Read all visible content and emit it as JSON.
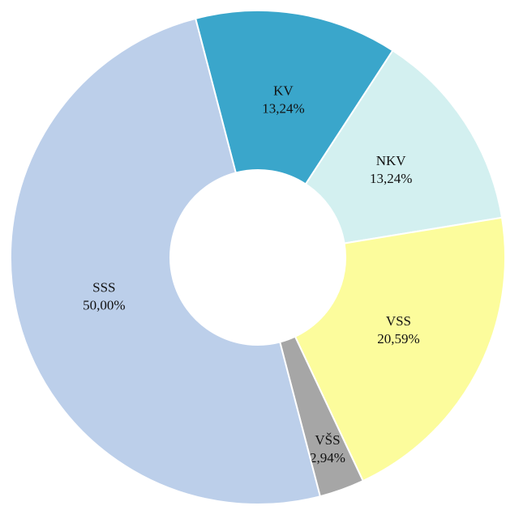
{
  "chart_data": {
    "type": "pie",
    "donut": true,
    "categories": [
      "KV",
      "NKV",
      "VSS",
      "VŠS",
      "SSS"
    ],
    "values": [
      13.24,
      13.24,
      20.59,
      2.94,
      50.0
    ],
    "value_labels": [
      "13,24%",
      "13,24%",
      "20,59%",
      "2,94%",
      "50,00%"
    ],
    "colors": [
      "#3aa6cb",
      "#d3f0f0",
      "#fcfc9c",
      "#a6a6a6",
      "#bccfea"
    ]
  }
}
